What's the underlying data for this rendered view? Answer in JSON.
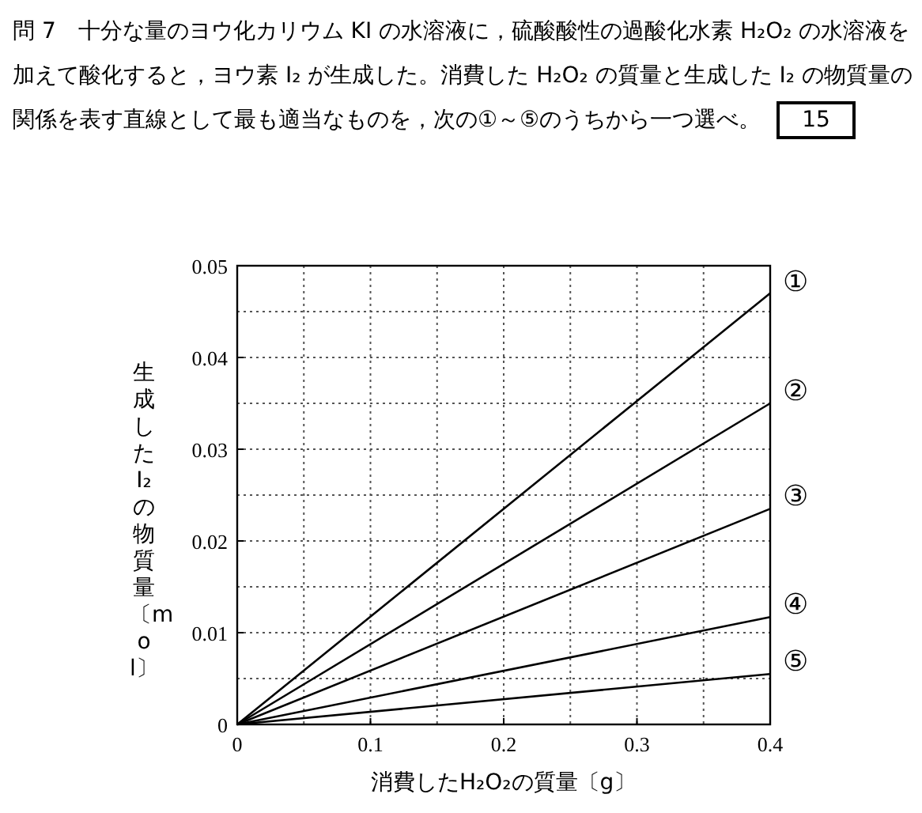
{
  "chart_data": {
    "type": "line",
    "title": "問 7　十分な量のヨウ化カリウム KI の水溶液に，硫酸酸性の過酸化水素 H₂O₂ の水溶液を加えて酸化すると，ヨウ素 I₂ が生成した。消費した H₂O₂ の質量と生成した I₂ の物質量の関係を表す直線として最も適当なものを，次の①～⑤のうちから一つ選べ。",
    "annotations": [
      "15"
    ],
    "xlabel": "消費したH₂O₂の質量〔g〕",
    "ylabel": "生成したI₂の物質量〔mol〕",
    "x": [
      0,
      0.4
    ],
    "series": [
      {
        "name": "①",
        "color": "#000000",
        "values": [
          0,
          0.047
        ]
      },
      {
        "name": "②",
        "color": "#000000",
        "values": [
          0,
          0.035
        ]
      },
      {
        "name": "③",
        "color": "#000000",
        "values": [
          0,
          0.0235
        ]
      },
      {
        "name": "④",
        "color": "#000000",
        "values": [
          0,
          0.0117
        ]
      },
      {
        "name": "⑤",
        "color": "#000000",
        "values": [
          0,
          0.0055
        ]
      }
    ],
    "xlim": [
      0,
      0.4
    ],
    "ylim": [
      0,
      0.05
    ],
    "xticks": [
      0,
      {
        "value": 0.05,
        "label": null
      },
      0.1,
      {
        "value": 0.15,
        "label": null
      },
      0.2,
      {
        "value": 0.25,
        "label": null
      },
      0.3,
      {
        "value": 0.35,
        "label": null
      },
      0.4
    ],
    "yticks": [
      0,
      {
        "value": 0.005,
        "label": null
      },
      0.01,
      {
        "value": 0.015,
        "label": null
      },
      0.02,
      {
        "value": 0.025,
        "label": null
      },
      0.03,
      {
        "value": 0.035,
        "label": null
      },
      0.04,
      {
        "value": 0.045,
        "label": null
      },
      0.05
    ],
    "grid": true,
    "marker": "none",
    "line_style": "solid"
  }
}
